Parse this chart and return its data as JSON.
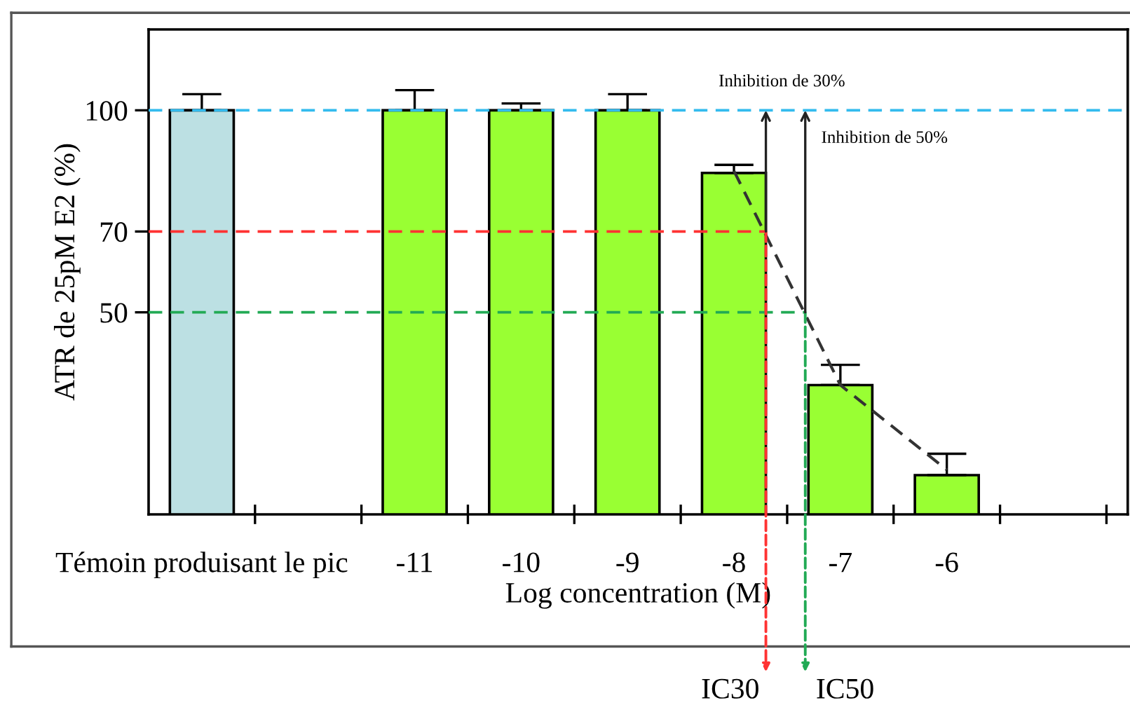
{
  "chart_data": {
    "type": "bar",
    "ylabel": "ATR de 25pM E2 (%)",
    "xlabel": "Log concentration (M)",
    "x": [
      -13,
      -11,
      -10,
      -9,
      -8,
      -7,
      -6
    ],
    "values": [
      100,
      100,
      100,
      100,
      84.5,
      32,
      9.7
    ],
    "colors": [
      "#bce0e3",
      "#99ff33",
      "#99ff33",
      "#99ff33",
      "#99ff33",
      "#99ff33",
      "#99ff33"
    ],
    "errors": [
      [
        100,
        104
      ],
      [
        100,
        105
      ],
      [
        100,
        101.7
      ],
      [
        100,
        104
      ],
      [
        84.5,
        86.5
      ],
      [
        32,
        37
      ],
      [
        9.7,
        15
      ]
    ],
    "series": [
      {
        "type": "line",
        "x": [
          -8,
          -7,
          -6
        ],
        "values": [
          85,
          32,
          11
        ],
        "color": "#333333",
        "line_style": "dashed"
      }
    ],
    "xlim": [
      -13.5,
      -4.3
    ],
    "xticks": [
      {
        "value": -13,
        "label": "Témoin produisant le pic"
      },
      {
        "value": -11,
        "label": "-11"
      },
      {
        "value": -10,
        "label": "-10"
      },
      {
        "value": -9,
        "label": "-9"
      },
      {
        "value": -8,
        "label": "-8"
      },
      {
        "value": -7,
        "label": "-7"
      },
      {
        "value": -6,
        "label": "-6"
      },
      {
        "value": -12.5,
        "label": null
      },
      {
        "value": -11.5,
        "label": null
      },
      {
        "value": -10.5,
        "label": null
      },
      {
        "value": -9.5,
        "label": null
      },
      {
        "value": -8.5,
        "label": null
      },
      {
        "value": -7.5,
        "label": null
      },
      {
        "value": -6.5,
        "label": null
      },
      {
        "value": -5.5,
        "label": null
      },
      {
        "value": -4.5,
        "label": null
      }
    ],
    "ylim": [
      0,
      120
    ],
    "yticks": [
      50,
      70,
      100
    ],
    "ref_lines": [
      {
        "axis": "y",
        "value": 100,
        "color": "#33bbee",
        "line_style": "dashed"
      },
      {
        "axis": "y",
        "value": 70,
        "color": "#ff3333",
        "line_style": "dashed"
      },
      {
        "axis": "y",
        "value": 50,
        "color": "#22aa55",
        "line_style": "dashed"
      }
    ],
    "annotations": [
      {
        "text": "IC30",
        "x": -7.7,
        "y": 70
      },
      {
        "text": "IC50",
        "x": -7.33,
        "y": 50
      },
      "Inhibition de 30%",
      "Inhibition de 50%"
    ],
    "grid": false,
    "legend": false
  }
}
